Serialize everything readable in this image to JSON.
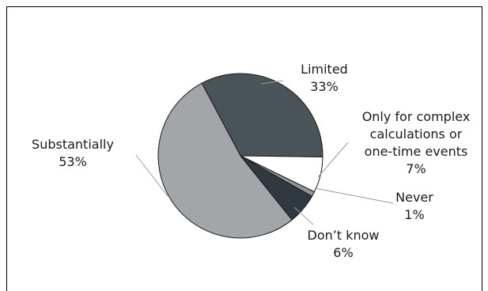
{
  "chart_data": {
    "type": "pie",
    "title": "",
    "slices": [
      {
        "label": "Limited",
        "value": 33,
        "value_label": "33%",
        "color": "#4a5358"
      },
      {
        "label": "Only for complex calculations or one-time events",
        "value": 7,
        "value_label": "7%",
        "color": "#ffffff"
      },
      {
        "label": "Never",
        "value": 1,
        "value_label": "1%",
        "color": "#8e969a"
      },
      {
        "label": "Don't know",
        "value": 6,
        "value_label": "6%",
        "color": "#2f393f"
      },
      {
        "label": "Substantially",
        "value": 53,
        "value_label": "53%",
        "color": "#a3a6a8"
      }
    ],
    "legend": "none"
  }
}
